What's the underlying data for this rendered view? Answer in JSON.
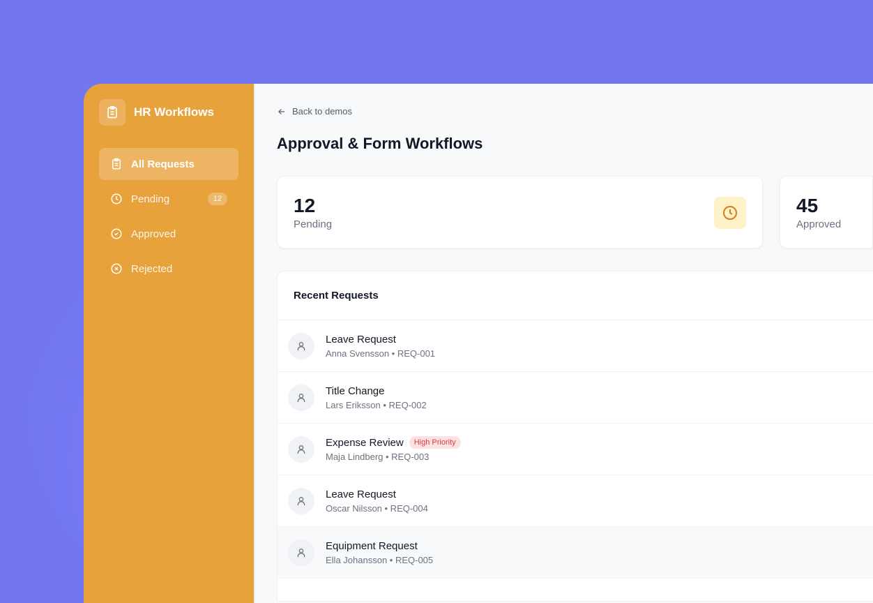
{
  "brand": {
    "name": "HR Workflows",
    "icon": "clipboard-icon"
  },
  "sidebar": {
    "items": [
      {
        "label": "All Requests",
        "icon": "clipboard-icon",
        "active": true
      },
      {
        "label": "Pending",
        "icon": "clock-icon",
        "badge": "12"
      },
      {
        "label": "Approved",
        "icon": "check-circle-icon"
      },
      {
        "label": "Rejected",
        "icon": "x-circle-icon"
      }
    ]
  },
  "header": {
    "back": "Back to demos",
    "title": "Approval & Form Workflows"
  },
  "stats": [
    {
      "value": "12",
      "label": "Pending",
      "icon": "clock-icon"
    },
    {
      "value": "45",
      "label": "Approved"
    }
  ],
  "recent": {
    "title": "Recent Requests",
    "items": [
      {
        "title": "Leave Request",
        "sub": "Anna Svensson • REQ-001"
      },
      {
        "title": "Title Change",
        "sub": "Lars Eriksson • REQ-002"
      },
      {
        "title": "Expense Review",
        "sub": "Maja Lindberg • REQ-003",
        "badge": "High Priority"
      },
      {
        "title": "Leave Request",
        "sub": "Oscar Nilsson • REQ-004"
      },
      {
        "title": "Equipment Request",
        "sub": "Ella Johansson • REQ-005"
      }
    ]
  },
  "colors": {
    "sidebar": "#e8a23c",
    "background": "#7277ef",
    "priority": "#dc3b3b"
  }
}
